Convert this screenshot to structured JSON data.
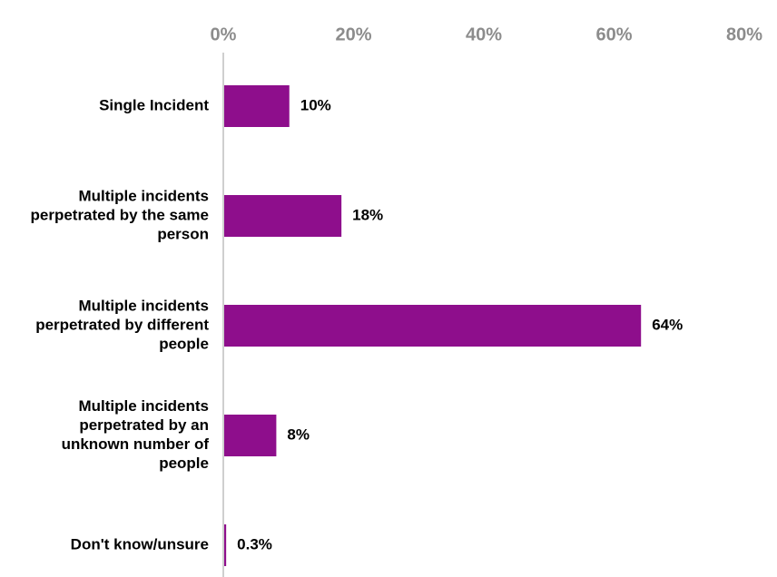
{
  "chart_data": {
    "type": "bar",
    "orientation": "horizontal",
    "categories": [
      "Single Incident",
      "Multiple incidents perpetrated by the same person",
      "Multiple incidents perpetrated by different people",
      "Multiple incidents perpetrated by an unknown number of people",
      "Don't know/unsure"
    ],
    "category_lines": [
      [
        "Single Incident"
      ],
      [
        "Multiple incidents",
        "perpetrated by the same",
        "person"
      ],
      [
        "Multiple incidents",
        "perpetrated by different",
        "people"
      ],
      [
        "Multiple incidents",
        "perpetrated by an",
        "unknown number of",
        "people"
      ],
      [
        "Don't know/unsure"
      ]
    ],
    "values": [
      10,
      18,
      64,
      8,
      0.3
    ],
    "data_labels": [
      "10%",
      "18%",
      "64%",
      "8%",
      "0.3%"
    ],
    "xlim": [
      0,
      80
    ],
    "x_ticks": [
      0,
      20,
      40,
      60,
      80
    ],
    "x_tick_labels": [
      "0%",
      "20%",
      "40%",
      "60%",
      "80%"
    ],
    "x_axis_position": "top",
    "grid": false,
    "legend": "none",
    "title": "",
    "xlabel": "",
    "ylabel": "",
    "colors": {
      "bar": "#8e0e8c",
      "axis": "#bfbfbf",
      "tick_label": "#8c8c8c",
      "text": "#000000"
    }
  }
}
